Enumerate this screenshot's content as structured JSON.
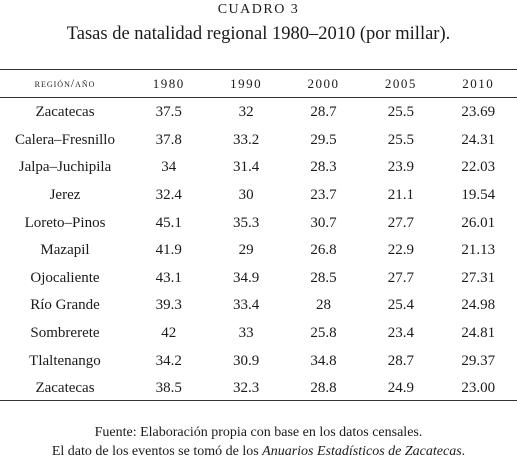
{
  "caption": {
    "label": "CUADRO 3",
    "title": "Tasas de natalidad regional 1980–2010 (por millar)."
  },
  "table": {
    "header": {
      "region": "región/año",
      "years": [
        "1980",
        "1990",
        "2000",
        "2005",
        "2010"
      ]
    },
    "rows": [
      {
        "region": "Zacatecas",
        "values": [
          "37.5",
          "32",
          "28.7",
          "25.5",
          "23.69"
        ]
      },
      {
        "region": "Calera–Fresnillo",
        "values": [
          "37.8",
          "33.2",
          "29.5",
          "25.5",
          "24.31"
        ]
      },
      {
        "region": "Jalpa–Juchipila",
        "values": [
          "34",
          "31.4",
          "28.3",
          "23.9",
          "22.03"
        ]
      },
      {
        "region": "Jerez",
        "values": [
          "32.4",
          "30",
          "23.7",
          "21.1",
          "19.54"
        ]
      },
      {
        "region": "Loreto–Pinos",
        "values": [
          "45.1",
          "35.3",
          "30.7",
          "27.7",
          "26.01"
        ]
      },
      {
        "region": "Mazapil",
        "values": [
          "41.9",
          "29",
          "26.8",
          "22.9",
          "21.13"
        ]
      },
      {
        "region": "Ojocaliente",
        "values": [
          "43.1",
          "34.9",
          "28.5",
          "27.7",
          "27.31"
        ]
      },
      {
        "region": "Río Grande",
        "values": [
          "39.3",
          "33.4",
          "28",
          "25.4",
          "24.98"
        ]
      },
      {
        "region": "Sombrerete",
        "values": [
          "42",
          "33",
          "25.8",
          "23.4",
          "24.81"
        ]
      },
      {
        "region": "Tlaltenango",
        "values": [
          "34.2",
          "30.9",
          "34.8",
          "28.7",
          "29.37"
        ]
      },
      {
        "region": "Zacatecas",
        "values": [
          "38.5",
          "32.3",
          "28.8",
          "24.9",
          "23.00"
        ]
      }
    ]
  },
  "source": {
    "line1": "Fuente: Elaboración propia con base en los datos censales.",
    "line2_prefix": "El dato de los eventos se tomó de los ",
    "line2_italic": "Anuarios Estadísticos de Zacatecas",
    "line2_suffix": "."
  }
}
